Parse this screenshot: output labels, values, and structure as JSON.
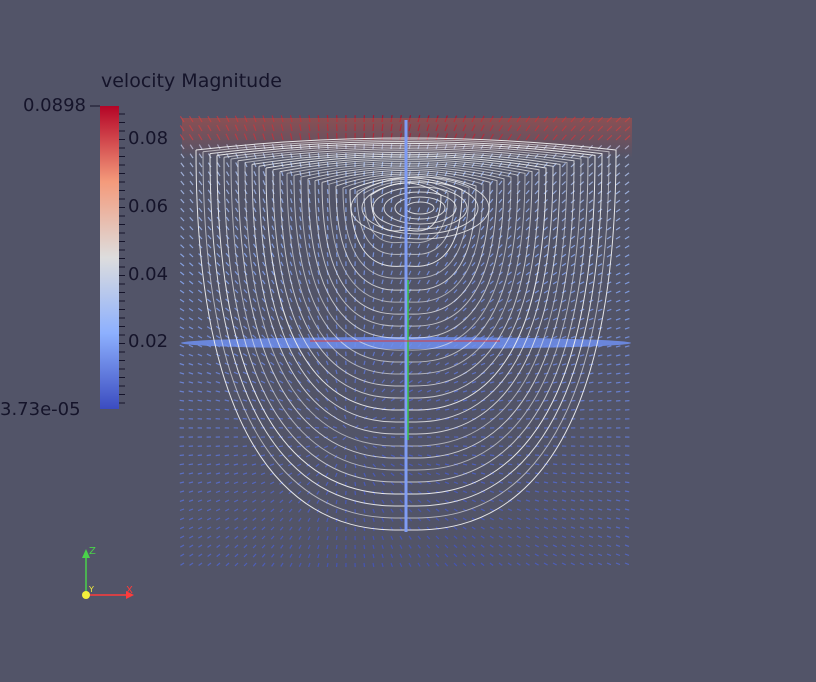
{
  "legend": {
    "title": "velocity Magnitude",
    "max_label": "0.0898",
    "min_label": "3.73e-05",
    "ticks": [
      "0.08",
      "0.06",
      "0.04",
      "0.02"
    ],
    "tick_values": [
      0.08,
      0.06,
      0.04,
      0.02
    ],
    "range": [
      3.73e-05,
      0.0898
    ],
    "colormap": [
      "#3b4cc0",
      "#8db0fe",
      "#dddddd",
      "#f49a7b",
      "#b40426"
    ]
  },
  "orientation_axes": {
    "z_label": "Z",
    "y_label": "Y",
    "x_label": "X",
    "z_color": "#4ad24a",
    "x_color": "#ff3b3b",
    "y_color": "#f4f03c"
  },
  "colors": {
    "background": "#525468",
    "streamline": "#f2f2f2",
    "arrow_low": "#4f6fd8"
  }
}
